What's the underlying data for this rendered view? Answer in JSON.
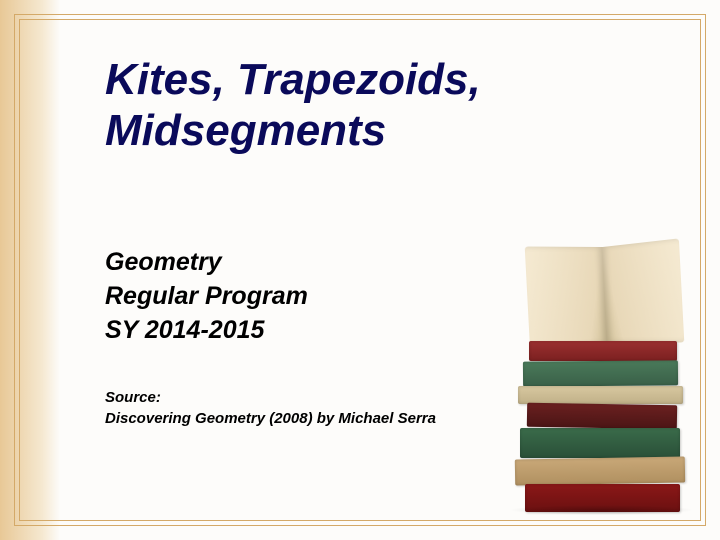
{
  "title": {
    "line1": "Kites, Trapezoids,",
    "line2": "Midsegments",
    "color": "#0a0a5a",
    "fontsize": 44
  },
  "subtitle": {
    "line1": "Geometry",
    "line2": "Regular Program",
    "line3": "SY 2014-2015",
    "color": "#000000",
    "fontsize": 25
  },
  "source": {
    "label": "Source:",
    "text": "Discovering Geometry (2008) by Michael Serra",
    "color": "#000000",
    "fontsize": 15
  },
  "frame": {
    "border_color": "#d4a968",
    "gradient_from": "#e8c896",
    "gradient_to": "#fdfcfa",
    "background": "#fdfcfa"
  },
  "decoration": {
    "type": "book-stack",
    "book_colors": [
      "#8b1818",
      "#c9a878",
      "#3a6b4a",
      "#6b2020",
      "#d8c8a0",
      "#4a7a5a",
      "#9b3030"
    ],
    "open_book_page_color": "#f5ead2"
  }
}
